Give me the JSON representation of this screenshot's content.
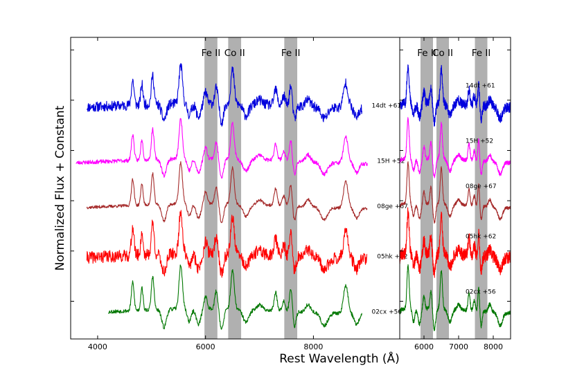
{
  "chart_data": [
    {
      "type": "line",
      "panel": "main",
      "xlabel": "Rest Wavelength (Å)",
      "ylabel": "Normalized Flux + Constant",
      "xlim": [
        3500,
        9600
      ],
      "ylim": [
        0,
        6
      ],
      "xticks": [
        4000,
        6000,
        8000
      ],
      "xtick_labels": [
        "4000",
        "6000",
        "8000"
      ],
      "yticks": [
        0.75,
        1.75,
        2.75,
        3.75,
        4.75,
        5.75
      ],
      "bands": [
        {
          "label": "Fe II",
          "x0": 5980,
          "x1": 6220
        },
        {
          "label": "Co II",
          "x0": 6420,
          "x1": 6660
        },
        {
          "label": "Fe II",
          "x0": 7460,
          "x1": 7700
        }
      ],
      "series": [
        {
          "name": "14dt +61",
          "color": "#0000dd",
          "x0": 3800,
          "x1": 8900,
          "offset": 4.55,
          "noise": 0.1,
          "seed": 11
        },
        {
          "name": "15H +52",
          "color": "#ff00ff",
          "x0": 3600,
          "x1": 9000,
          "offset": 3.45,
          "noise": 0.04,
          "seed": 23
        },
        {
          "name": "08ge +67",
          "color": "#a52a2a",
          "x0": 3800,
          "x1": 9000,
          "offset": 2.55,
          "noise": 0.03,
          "seed": 37
        },
        {
          "name": "05hk +62",
          "color": "#ff0000",
          "x0": 3800,
          "x1": 9000,
          "offset": 1.55,
          "noise": 0.12,
          "seed": 41
        },
        {
          "name": "02cx +56",
          "color": "#007700",
          "x0": 4200,
          "x1": 8900,
          "offset": 0.45,
          "noise": 0.04,
          "seed": 53
        }
      ]
    },
    {
      "type": "line",
      "panel": "zoom",
      "xlim": [
        5300,
        8500
      ],
      "ylim": [
        0,
        6
      ],
      "xticks": [
        6000,
        7000,
        8000
      ],
      "xtick_labels": [
        "6000",
        "7000",
        "8000"
      ],
      "bands": [
        {
          "label": "Fe II",
          "x0": 5900,
          "x1": 6260
        },
        {
          "label": "Co II",
          "x0": 6360,
          "x1": 6720
        },
        {
          "label": "Fe II",
          "x0": 7470,
          "x1": 7830
        }
      ],
      "series_labels": [
        "14dt +61",
        "15H +52",
        "08ge +67",
        "05hk +62",
        "02cx +56"
      ]
    }
  ]
}
